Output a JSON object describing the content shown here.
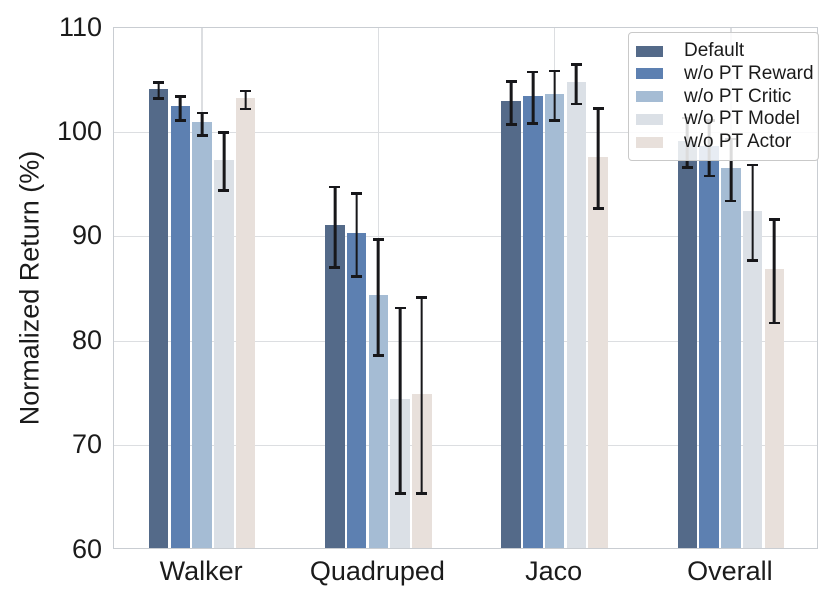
{
  "chart_data": {
    "type": "bar",
    "title": "",
    "xlabel": "",
    "ylabel": "Normalized Return (%)",
    "ylim": [
      60,
      110
    ],
    "yticks": [
      60,
      70,
      80,
      90,
      100,
      110
    ],
    "categories": [
      "Walker",
      "Quadruped",
      "Jaco",
      "Overall"
    ],
    "series": [
      {
        "name": "Default",
        "color": "#546a89",
        "values": [
          104.0,
          90.9,
          102.8,
          99.0
        ],
        "errors": [
          0.9,
          4.0,
          2.2,
          2.5
        ]
      },
      {
        "name": "w/o PT Reward",
        "color": "#5d80b1",
        "values": [
          102.3,
          90.2,
          103.3,
          98.5
        ],
        "errors": [
          1.3,
          4.1,
          2.6,
          2.8
        ]
      },
      {
        "name": "w/o PT Critic",
        "color": "#a5bcd4",
        "values": [
          100.8,
          84.2,
          103.5,
          96.4
        ],
        "errors": [
          1.2,
          5.7,
          2.5,
          3.1
        ]
      },
      {
        "name": "w/o PT Model",
        "color": "#dbe0e6",
        "values": [
          97.2,
          74.3,
          104.6,
          92.3
        ],
        "errors": [
          2.9,
          9.0,
          2.0,
          4.7
        ]
      },
      {
        "name": "w/o PT Actor",
        "color": "#e8e0db",
        "values": [
          103.1,
          74.8,
          97.5,
          86.7
        ],
        "errors": [
          1.0,
          9.5,
          4.9,
          5.1
        ]
      }
    ],
    "legend_position": "upper right",
    "grid": true,
    "error_bars": true,
    "error_bar_color": "#17171a"
  },
  "style_colors": {
    "grid": "#dcdee1",
    "spine": "#c9cdd2",
    "text": "#1b1b1b",
    "background": "#ffffff",
    "legend_border": "#c9c9c9"
  }
}
